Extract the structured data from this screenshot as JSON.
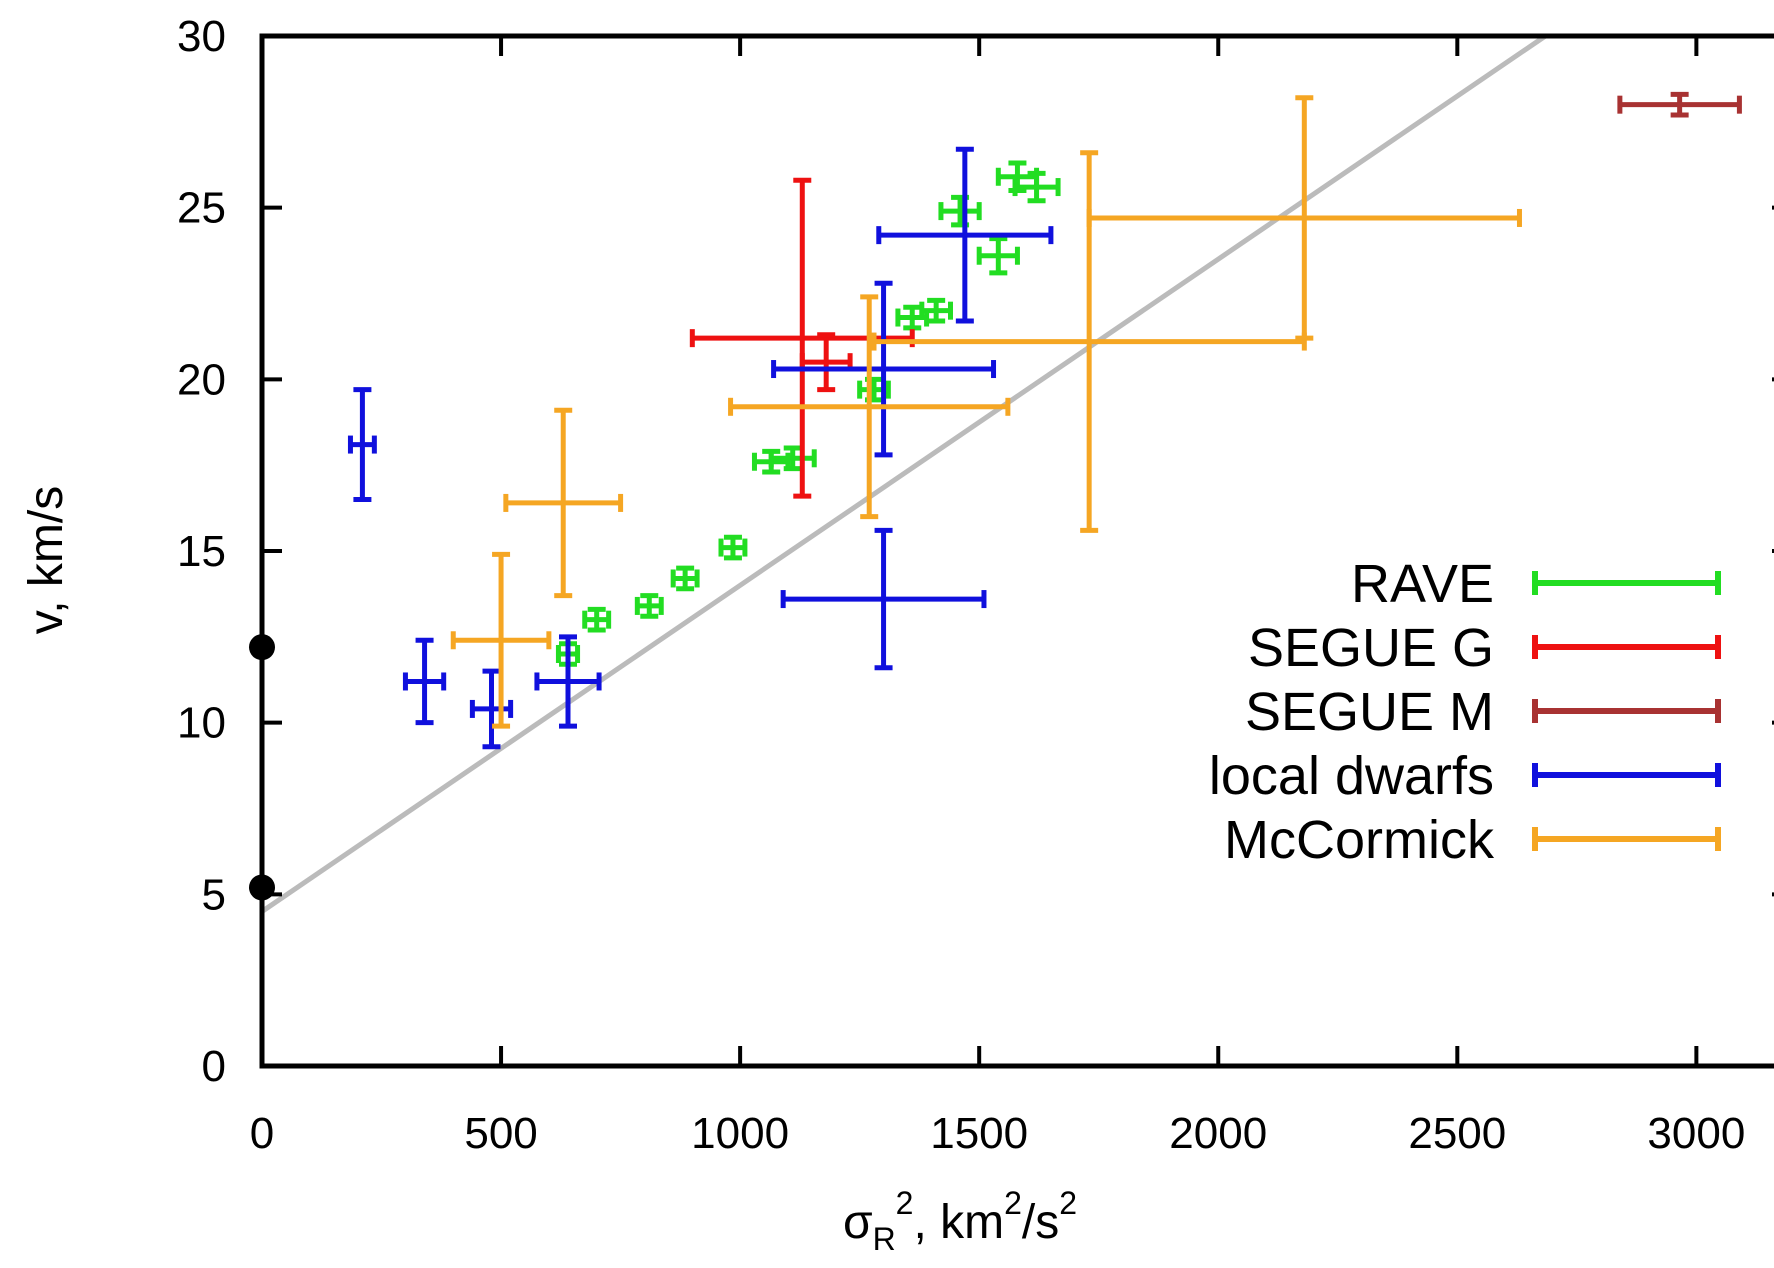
{
  "chart_data": {
    "type": "scatter",
    "title": "",
    "xlabel": {
      "main": "σ",
      "sub": "R",
      "sup": "2",
      "rest": ", km",
      "sup2": "2",
      "rest2": "/s",
      "sup3": "2"
    },
    "ylabel": "v, km/s",
    "xlim": [
      0,
      3200
    ],
    "ylim": [
      0,
      30
    ],
    "x_ticks": [
      0,
      500,
      1000,
      1500,
      2000,
      2500,
      3000
    ],
    "y_ticks": [
      0,
      5,
      10,
      15,
      20,
      25,
      30
    ],
    "grid": false,
    "legend_position": "right-center",
    "fit_line": {
      "intercept": 4.5,
      "slope": 0.0095,
      "color": "#bbbbbb"
    },
    "reference_points": [
      {
        "x": 0,
        "y": 12.2
      },
      {
        "x": 0,
        "y": 5.2
      }
    ],
    "series": [
      {
        "name": "RAVE",
        "color": "#22dd22",
        "points": [
          {
            "x": 640,
            "y": 12.0,
            "xerr": 20,
            "yerr": 0.3
          },
          {
            "x": 700,
            "y": 13.0,
            "xerr": 25,
            "yerr": 0.3
          },
          {
            "x": 810,
            "y": 13.4,
            "xerr": 25,
            "yerr": 0.3
          },
          {
            "x": 885,
            "y": 14.2,
            "xerr": 25,
            "yerr": 0.3
          },
          {
            "x": 985,
            "y": 15.1,
            "xerr": 25,
            "yerr": 0.3
          },
          {
            "x": 1065,
            "y": 17.6,
            "xerr": 35,
            "yerr": 0.3
          },
          {
            "x": 1110,
            "y": 17.7,
            "xerr": 45,
            "yerr": 0.3
          },
          {
            "x": 1280,
            "y": 19.7,
            "xerr": 30,
            "yerr": 0.3
          },
          {
            "x": 1360,
            "y": 21.8,
            "xerr": 30,
            "yerr": 0.3
          },
          {
            "x": 1410,
            "y": 22.0,
            "xerr": 30,
            "yerr": 0.3
          },
          {
            "x": 1460,
            "y": 24.9,
            "xerr": 40,
            "yerr": 0.4
          },
          {
            "x": 1540,
            "y": 23.6,
            "xerr": 40,
            "yerr": 0.5
          },
          {
            "x": 1580,
            "y": 25.9,
            "xerr": 40,
            "yerr": 0.4
          },
          {
            "x": 1620,
            "y": 25.6,
            "xerr": 45,
            "yerr": 0.4
          }
        ]
      },
      {
        "name": "SEGUE G",
        "color": "#ee1111",
        "points": [
          {
            "x": 1130,
            "y": 21.2,
            "xerr": 230,
            "yerr": 4.6
          },
          {
            "x": 1180,
            "y": 20.5,
            "xerr": 50,
            "yerr": 0.8
          }
        ]
      },
      {
        "name": "SEGUE M",
        "color": "#a83232",
        "points": [
          {
            "x": 2965,
            "y": 28.0,
            "xerr": 125,
            "yerr": 0.3
          }
        ]
      },
      {
        "name": "local dwarfs",
        "color": "#1010dd",
        "points": [
          {
            "x": 210,
            "y": 18.1,
            "xerr": 25,
            "yerr": 1.6
          },
          {
            "x": 340,
            "y": 11.2,
            "xerr": 40,
            "yerr": 1.2
          },
          {
            "x": 480,
            "y": 10.4,
            "xerr": 40,
            "yerr": 1.1
          },
          {
            "x": 640,
            "y": 11.2,
            "xerr": 65,
            "yerr": 1.3
          },
          {
            "x": 1300,
            "y": 20.3,
            "xerr": 230,
            "yerr": 2.5
          },
          {
            "x": 1470,
            "y": 24.2,
            "xerr": 180,
            "yerr": 2.5
          },
          {
            "x": 1300,
            "y": 13.6,
            "xerr": 210,
            "yerr": 2.0
          }
        ]
      },
      {
        "name": "McCormick",
        "color": "#f5a623",
        "points": [
          {
            "x": 500,
            "y": 12.4,
            "xerr": 100,
            "yerr": 2.5
          },
          {
            "x": 630,
            "y": 16.4,
            "xerr": 120,
            "yerr": 2.7
          },
          {
            "x": 1270,
            "y": 19.2,
            "xerr": 290,
            "yerr": 3.2
          },
          {
            "x": 1730,
            "y": 21.1,
            "xerr": 450,
            "yerr": 5.5
          },
          {
            "x": 2180,
            "y": 24.7,
            "xerr": 450,
            "yerr": 3.5
          }
        ]
      }
    ]
  }
}
